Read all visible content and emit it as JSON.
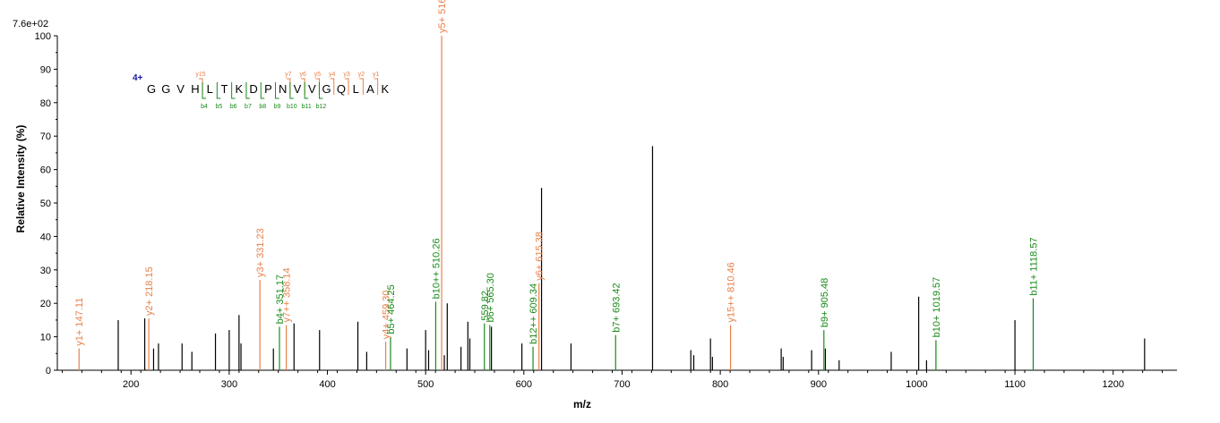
{
  "chart_data": {
    "type": "bar",
    "title": "",
    "xlabel": "m/z",
    "ylabel": "Relative   Intensity (%)",
    "max_intensity_label": "7.6e+02",
    "xlim": [
      125,
      1265
    ],
    "ylim": [
      0,
      100
    ],
    "x_ticks": [
      200,
      300,
      400,
      500,
      600,
      700,
      800,
      900,
      1000,
      1100,
      1200
    ],
    "y_ticks": [
      0,
      10,
      20,
      30,
      40,
      50,
      60,
      70,
      80,
      90,
      100
    ],
    "colors": {
      "unassigned": "#000000",
      "y_ion": "#e8804a",
      "b_ion": "#1a8a1a",
      "charge": "#1a1aa8"
    },
    "peaks": [
      {
        "mz": 147.11,
        "intensity": 6.5,
        "ion": "y",
        "label": "y1+ 147.11"
      },
      {
        "mz": 187.0,
        "intensity": 15,
        "ion": ""
      },
      {
        "mz": 214.0,
        "intensity": 15.5,
        "ion": ""
      },
      {
        "mz": 218.15,
        "intensity": 15.5,
        "ion": "y",
        "label": "y2+ 218.15"
      },
      {
        "mz": 223.0,
        "intensity": 6.5,
        "ion": ""
      },
      {
        "mz": 228.0,
        "intensity": 8,
        "ion": ""
      },
      {
        "mz": 252.0,
        "intensity": 8,
        "ion": ""
      },
      {
        "mz": 262.0,
        "intensity": 5.5,
        "ion": ""
      },
      {
        "mz": 286.0,
        "intensity": 11,
        "ion": ""
      },
      {
        "mz": 300.0,
        "intensity": 12,
        "ion": ""
      },
      {
        "mz": 310.0,
        "intensity": 16.5,
        "ion": ""
      },
      {
        "mz": 312.0,
        "intensity": 8,
        "ion": ""
      },
      {
        "mz": 331.23,
        "intensity": 27,
        "ion": "y",
        "label": "y3+ 331.23"
      },
      {
        "mz": 345.0,
        "intensity": 6.5,
        "ion": ""
      },
      {
        "mz": 351.17,
        "intensity": 13,
        "ion": "b",
        "label": "b4+ 351.17"
      },
      {
        "mz": 358.14,
        "intensity": 13.5,
        "ion": "y",
        "label": "y7++ 358.14"
      },
      {
        "mz": 366.0,
        "intensity": 14,
        "ion": ""
      },
      {
        "mz": 392.0,
        "intensity": 12,
        "ion": ""
      },
      {
        "mz": 431.0,
        "intensity": 14.5,
        "ion": ""
      },
      {
        "mz": 440.0,
        "intensity": 5.5,
        "ion": ""
      },
      {
        "mz": 459.3,
        "intensity": 8.5,
        "ion": "y",
        "label": "y4+ 459.30"
      },
      {
        "mz": 464.25,
        "intensity": 10,
        "ion": "b",
        "label": "b5+ 464.25"
      },
      {
        "mz": 481.0,
        "intensity": 6.5,
        "ion": ""
      },
      {
        "mz": 500.0,
        "intensity": 12,
        "ion": ""
      },
      {
        "mz": 503.0,
        "intensity": 6,
        "ion": ""
      },
      {
        "mz": 510.26,
        "intensity": 20.5,
        "ion": "b",
        "label": "b10++ 510.26"
      },
      {
        "mz": 516.3,
        "intensity": 100,
        "ion": "y",
        "label": "y5+ 516.3"
      },
      {
        "mz": 519.0,
        "intensity": 4.5,
        "ion": ""
      },
      {
        "mz": 522.0,
        "intensity": 20,
        "ion": ""
      },
      {
        "mz": 536.0,
        "intensity": 7,
        "ion": ""
      },
      {
        "mz": 543.0,
        "intensity": 14.5,
        "ion": ""
      },
      {
        "mz": 545.0,
        "intensity": 9.5,
        "ion": ""
      },
      {
        "mz": 559.82,
        "intensity": 14,
        "ion": "b",
        "label": "559.82"
      },
      {
        "mz": 565.3,
        "intensity": 13.5,
        "ion": "b",
        "label": "b6+ 565.30"
      },
      {
        "mz": 567.0,
        "intensity": 13,
        "ion": ""
      },
      {
        "mz": 598.0,
        "intensity": 8,
        "ion": ""
      },
      {
        "mz": 609.34,
        "intensity": 7,
        "ion": "b",
        "label": "b12++ 609.34"
      },
      {
        "mz": 615.38,
        "intensity": 26,
        "ion": "y",
        "label": "y6+ 615.38"
      },
      {
        "mz": 618.0,
        "intensity": 54.5,
        "ion": ""
      },
      {
        "mz": 648.0,
        "intensity": 8,
        "ion": ""
      },
      {
        "mz": 693.42,
        "intensity": 10.5,
        "ion": "b",
        "label": "b7+ 693.42"
      },
      {
        "mz": 731.0,
        "intensity": 67,
        "ion": ""
      },
      {
        "mz": 770.0,
        "intensity": 6,
        "ion": ""
      },
      {
        "mz": 773.0,
        "intensity": 4.5,
        "ion": ""
      },
      {
        "mz": 790.0,
        "intensity": 9.5,
        "ion": ""
      },
      {
        "mz": 792.0,
        "intensity": 4,
        "ion": ""
      },
      {
        "mz": 810.46,
        "intensity": 13.5,
        "ion": "y",
        "label": "y15++ 810.46"
      },
      {
        "mz": 862.0,
        "intensity": 6.5,
        "ion": ""
      },
      {
        "mz": 864.0,
        "intensity": 4,
        "ion": ""
      },
      {
        "mz": 893.0,
        "intensity": 6,
        "ion": ""
      },
      {
        "mz": 905.48,
        "intensity": 12,
        "ion": "b",
        "label": "b9+ 905.48"
      },
      {
        "mz": 907.0,
        "intensity": 6.5,
        "ion": ""
      },
      {
        "mz": 921.0,
        "intensity": 3,
        "ion": ""
      },
      {
        "mz": 974.0,
        "intensity": 5.5,
        "ion": ""
      },
      {
        "mz": 1002.0,
        "intensity": 22,
        "ion": ""
      },
      {
        "mz": 1010.0,
        "intensity": 3,
        "ion": ""
      },
      {
        "mz": 1019.57,
        "intensity": 9,
        "ion": "b",
        "label": "b10+ 1019.57"
      },
      {
        "mz": 1100.0,
        "intensity": 15,
        "ion": ""
      },
      {
        "mz": 1118.57,
        "intensity": 21.5,
        "ion": "b",
        "label": "b11+ 1118.57"
      },
      {
        "mz": 1232.0,
        "intensity": 9.5,
        "ion": ""
      }
    ],
    "sequence": {
      "charge": "4+",
      "residues": [
        "G",
        "G",
        "V",
        "H",
        "L",
        "T",
        "K",
        "D",
        "P",
        "N",
        "V",
        "V",
        "G",
        "Q",
        "L",
        "A",
        "K"
      ],
      "y_ions": [
        {
          "after_index": 3,
          "label": "y15"
        },
        {
          "after_index": 9,
          "label": "y7"
        },
        {
          "after_index": 10,
          "label": "y6"
        },
        {
          "after_index": 11,
          "label": "y5"
        },
        {
          "after_index": 12,
          "label": "y4"
        },
        {
          "after_index": 13,
          "label": "y3"
        },
        {
          "after_index": 14,
          "label": "y2"
        },
        {
          "after_index": 15,
          "label": "y1"
        }
      ],
      "b_ions": [
        {
          "after_index": 3,
          "label": "b4"
        },
        {
          "after_index": 4,
          "label": "b5"
        },
        {
          "after_index": 5,
          "label": "b6"
        },
        {
          "after_index": 6,
          "label": "b7"
        },
        {
          "after_index": 7,
          "label": "b8"
        },
        {
          "after_index": 8,
          "label": "b9"
        },
        {
          "after_index": 9,
          "label": "b10"
        },
        {
          "after_index": 10,
          "label": "b11"
        },
        {
          "after_index": 11,
          "label": "b12"
        }
      ]
    }
  }
}
